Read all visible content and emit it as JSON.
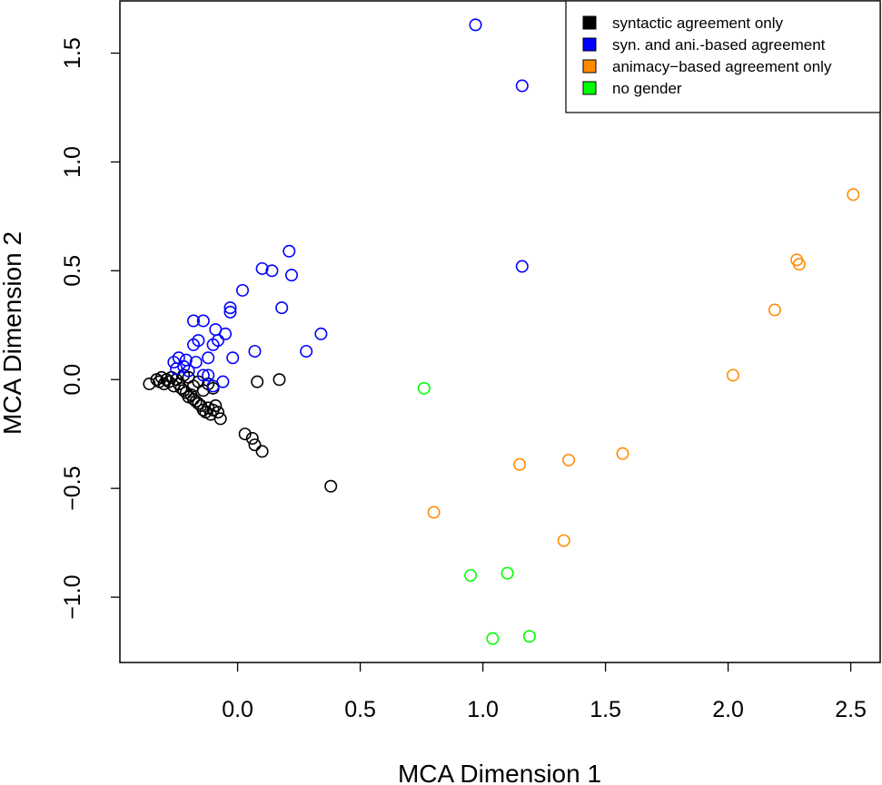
{
  "chart_data": {
    "type": "scatter",
    "title": "",
    "xlabel": "MCA Dimension 1",
    "ylabel": "MCA Dimension 2",
    "xlim": [
      -0.48,
      2.62
    ],
    "ylim": [
      -1.3,
      1.74
    ],
    "xticks": [
      0.0,
      0.5,
      1.0,
      1.5,
      2.0,
      2.5
    ],
    "xtick_labels": [
      "0.0",
      "0.5",
      "1.0",
      "1.5",
      "2.0",
      "2.5"
    ],
    "yticks": [
      -1.0,
      -0.5,
      0.0,
      0.5,
      1.0,
      1.5
    ],
    "ytick_labels": [
      "−1.0",
      "−0.5",
      "0.0",
      "0.5",
      "1.0",
      "1.5"
    ],
    "grid": false,
    "legend_position": "top-right",
    "series": [
      {
        "name": "syntactic agreement only",
        "color": "#000000",
        "points": [
          [
            -0.36,
            -0.02
          ],
          [
            -0.33,
            0.0
          ],
          [
            -0.32,
            -0.01
          ],
          [
            -0.31,
            0.01
          ],
          [
            -0.3,
            -0.02
          ],
          [
            -0.29,
            0.0
          ],
          [
            -0.28,
            -0.01
          ],
          [
            -0.27,
            0.01
          ],
          [
            -0.26,
            -0.03
          ],
          [
            -0.25,
            0.0
          ],
          [
            -0.24,
            -0.02
          ],
          [
            -0.23,
            -0.04
          ],
          [
            -0.22,
            -0.05
          ],
          [
            -0.21,
            -0.06
          ],
          [
            -0.2,
            -0.08
          ],
          [
            -0.19,
            -0.07
          ],
          [
            -0.18,
            -0.09
          ],
          [
            -0.17,
            -0.1
          ],
          [
            -0.16,
            -0.11
          ],
          [
            -0.15,
            -0.12
          ],
          [
            -0.14,
            -0.14
          ],
          [
            -0.13,
            -0.15
          ],
          [
            -0.12,
            -0.13
          ],
          [
            -0.11,
            -0.16
          ],
          [
            -0.1,
            -0.14
          ],
          [
            -0.09,
            -0.12
          ],
          [
            -0.08,
            -0.15
          ],
          [
            -0.07,
            -0.18
          ],
          [
            -0.22,
            0.02
          ],
          [
            -0.2,
            0.01
          ],
          [
            -0.18,
            -0.03
          ],
          [
            -0.16,
            -0.01
          ],
          [
            -0.14,
            -0.05
          ],
          [
            -0.12,
            -0.02
          ],
          [
            -0.1,
            -0.04
          ],
          [
            0.03,
            -0.25
          ],
          [
            0.06,
            -0.27
          ],
          [
            0.07,
            -0.3
          ],
          [
            0.1,
            -0.33
          ],
          [
            0.08,
            -0.01
          ],
          [
            0.17,
            0.0
          ],
          [
            0.38,
            -0.49
          ]
        ]
      },
      {
        "name": "syn. and ani.-based agreement",
        "color": "#0000ff",
        "points": [
          [
            0.97,
            1.63
          ],
          [
            1.16,
            1.35
          ],
          [
            1.16,
            0.52
          ],
          [
            0.21,
            0.59
          ],
          [
            0.1,
            0.51
          ],
          [
            0.14,
            0.5
          ],
          [
            0.22,
            0.48
          ],
          [
            0.02,
            0.41
          ],
          [
            -0.03,
            0.33
          ],
          [
            -0.03,
            0.31
          ],
          [
            0.18,
            0.33
          ],
          [
            0.34,
            0.21
          ],
          [
            0.28,
            0.13
          ],
          [
            0.07,
            0.13
          ],
          [
            -0.02,
            0.1
          ],
          [
            -0.18,
            0.27
          ],
          [
            -0.14,
            0.27
          ],
          [
            -0.09,
            0.23
          ],
          [
            -0.05,
            0.21
          ],
          [
            -0.16,
            0.18
          ],
          [
            -0.1,
            0.16
          ],
          [
            -0.08,
            0.18
          ],
          [
            -0.12,
            0.1
          ],
          [
            -0.18,
            0.16
          ],
          [
            -0.21,
            0.09
          ],
          [
            -0.24,
            0.1
          ],
          [
            -0.26,
            0.08
          ],
          [
            -0.22,
            0.06
          ],
          [
            -0.17,
            0.08
          ],
          [
            -0.14,
            0.02
          ],
          [
            -0.12,
            0.02
          ],
          [
            -0.1,
            -0.03
          ],
          [
            -0.06,
            -0.01
          ],
          [
            -0.2,
            0.04
          ],
          [
            -0.25,
            0.05
          ]
        ]
      },
      {
        "name": "animacy−based agreement only",
        "color": "#ff8c00",
        "points": [
          [
            2.51,
            0.85
          ],
          [
            2.28,
            0.55
          ],
          [
            2.29,
            0.53
          ],
          [
            2.19,
            0.32
          ],
          [
            2.02,
            0.02
          ],
          [
            1.57,
            -0.34
          ],
          [
            1.35,
            -0.37
          ],
          [
            1.15,
            -0.39
          ],
          [
            0.8,
            -0.61
          ],
          [
            1.33,
            -0.74
          ]
        ]
      },
      {
        "name": "no gender",
        "color": "#00ff00",
        "points": [
          [
            0.76,
            -0.04
          ],
          [
            0.95,
            -0.9
          ],
          [
            1.1,
            -0.89
          ],
          [
            1.04,
            -1.19
          ],
          [
            1.19,
            -1.18
          ]
        ]
      }
    ]
  }
}
